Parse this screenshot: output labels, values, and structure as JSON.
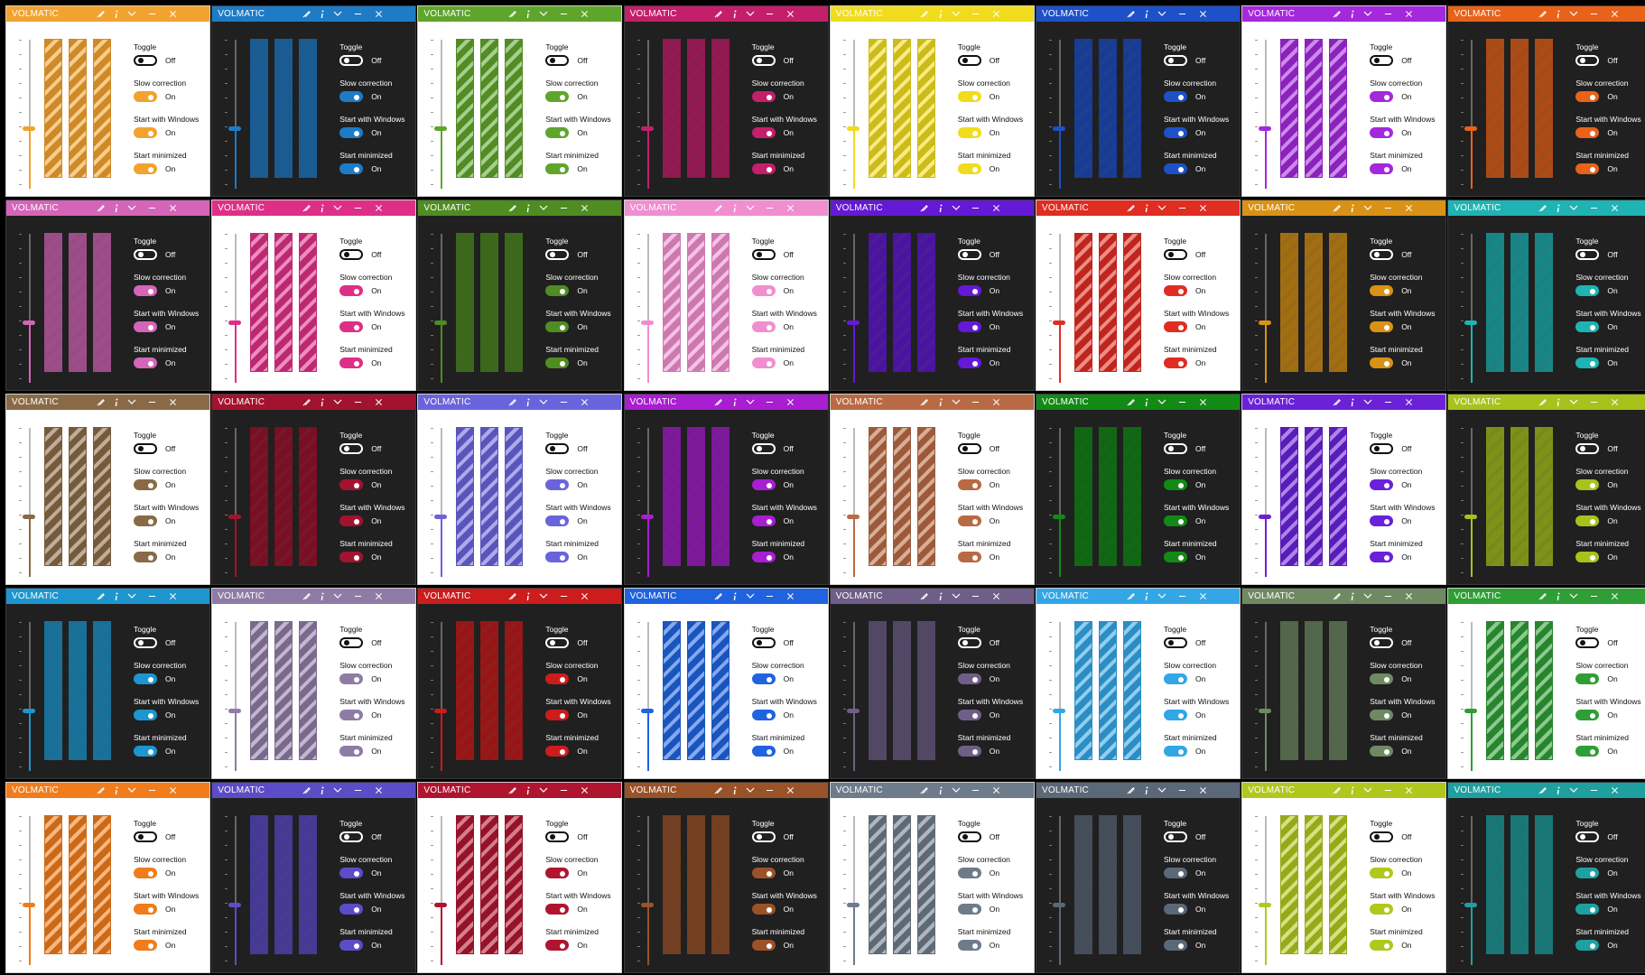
{
  "app_title": "VOLMATIC",
  "options": [
    {
      "label": "Toggle",
      "state": "Off"
    },
    {
      "label": "Slow correction",
      "state": "On"
    },
    {
      "label": "Start with Windows",
      "state": "On"
    },
    {
      "label": "Start minimized",
      "state": "On"
    }
  ],
  "titlebar_icons": [
    "brush-icon",
    "info-icon",
    "chevron-down-icon",
    "minimize-icon",
    "close-icon"
  ],
  "windows": [
    {
      "accent": "#f2a22e",
      "theme": "light"
    },
    {
      "accent": "#1e7bc6",
      "theme": "dark"
    },
    {
      "accent": "#5fa52c",
      "theme": "light"
    },
    {
      "accent": "#c41f6b",
      "theme": "dark"
    },
    {
      "accent": "#f0dc1d",
      "theme": "light"
    },
    {
      "accent": "#1e50c8",
      "theme": "dark"
    },
    {
      "accent": "#a428dc",
      "theme": "light"
    },
    {
      "accent": "#e8621a",
      "theme": "dark"
    },
    {
      "accent": "#d465b8",
      "theme": "dark"
    },
    {
      "accent": "#de2f87",
      "theme": "light"
    },
    {
      "accent": "#4f8c22",
      "theme": "dark"
    },
    {
      "accent": "#f08ed0",
      "theme": "light"
    },
    {
      "accent": "#6419d6",
      "theme": "dark"
    },
    {
      "accent": "#e02d22",
      "theme": "light"
    },
    {
      "accent": "#d99215",
      "theme": "dark"
    },
    {
      "accent": "#1fb3b3",
      "theme": "dark"
    },
    {
      "accent": "#8a6a46",
      "theme": "light"
    },
    {
      "accent": "#a3132f",
      "theme": "dark"
    },
    {
      "accent": "#6a64dc",
      "theme": "light"
    },
    {
      "accent": "#a81ed0",
      "theme": "dark"
    },
    {
      "accent": "#b86a44",
      "theme": "light"
    },
    {
      "accent": "#138a16",
      "theme": "dark"
    },
    {
      "accent": "#6a21d8",
      "theme": "light"
    },
    {
      "accent": "#a8c21c",
      "theme": "dark"
    },
    {
      "accent": "#1d96cf",
      "theme": "dark"
    },
    {
      "accent": "#8f7ca6",
      "theme": "light"
    },
    {
      "accent": "#cc1c1c",
      "theme": "dark"
    },
    {
      "accent": "#1f63df",
      "theme": "light"
    },
    {
      "accent": "#6f5e88",
      "theme": "dark"
    },
    {
      "accent": "#33a6e6",
      "theme": "light"
    },
    {
      "accent": "#6f8a62",
      "theme": "dark"
    },
    {
      "accent": "#2e9e35",
      "theme": "light"
    },
    {
      "accent": "#f07c1b",
      "theme": "light"
    },
    {
      "accent": "#5b4cc8",
      "theme": "dark"
    },
    {
      "accent": "#b01530",
      "theme": "light"
    },
    {
      "accent": "#9a5229",
      "theme": "dark"
    },
    {
      "accent": "#6e7b8b",
      "theme": "light"
    },
    {
      "accent": "#5b6878",
      "theme": "dark"
    },
    {
      "accent": "#b0c81d",
      "theme": "light"
    },
    {
      "accent": "#1ea0a0",
      "theme": "dark"
    }
  ]
}
